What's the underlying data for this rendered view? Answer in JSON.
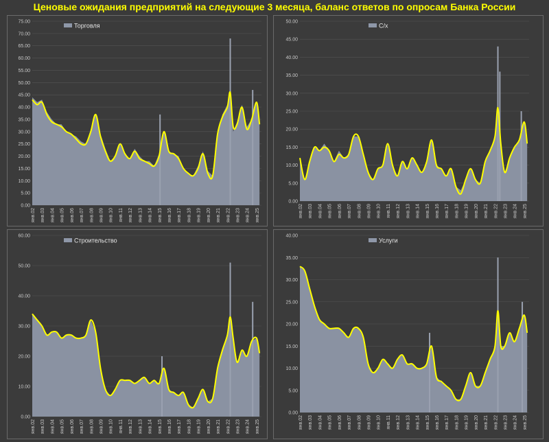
{
  "title": "Ценовые ожидания предприятий на следующие 3 месяца, баланс ответов по опросам Банка России",
  "colors": {
    "area": "#8e97a8",
    "spike": "#9aa1b0",
    "line": "#ffff00",
    "grid": "#555555",
    "panel": "#3b3b3b"
  },
  "chart_data": [
    {
      "type": "area",
      "name": "Торговля",
      "ylim": [
        0,
        75
      ],
      "ystep": 5,
      "yticks": [
        "0.00",
        "5.00",
        "10.00",
        "15.00",
        "20.00",
        "25.00",
        "30.00",
        "35.00",
        "40.00",
        "45.00",
        "50.00",
        "55.00",
        "60.00",
        "65.00",
        "70.00",
        "75.00"
      ],
      "xticks": [
        "янв.02",
        "янв.03",
        "янв.04",
        "янв.05",
        "янв.06",
        "янв.07",
        "янв.08",
        "янв.09",
        "янв.10",
        "янв.11",
        "янв.12",
        "янв.13",
        "янв.14",
        "янв.15",
        "янв.16",
        "янв.17",
        "янв.18",
        "янв.19",
        "янв.20",
        "янв.21",
        "янв.22",
        "янв.23",
        "янв.24",
        "янв.25"
      ],
      "x": [
        2002,
        2002.5,
        2003,
        2003.5,
        2004,
        2004.5,
        2005,
        2005.5,
        2006,
        2006.5,
        2007,
        2007.5,
        2008,
        2008.5,
        2009,
        2009.5,
        2010,
        2010.5,
        2011,
        2011.5,
        2012,
        2012.5,
        2013,
        2013.5,
        2014,
        2014.5,
        2015,
        2015.5,
        2016,
        2016.5,
        2017,
        2017.5,
        2018,
        2018.5,
        2019,
        2019.5,
        2020,
        2020.5,
        2021,
        2021.5,
        2022,
        2022.3,
        2022.6,
        2023,
        2023.5,
        2024,
        2024.5,
        2025,
        2025.3
      ],
      "values": [
        44,
        42,
        43,
        38,
        35,
        33,
        33,
        30,
        29,
        28,
        26,
        25,
        31,
        37,
        29,
        23,
        18,
        20,
        25,
        21,
        19,
        23,
        20,
        18,
        18,
        16,
        21,
        30,
        22,
        21,
        20,
        15,
        13,
        12,
        16,
        22,
        14,
        12,
        30,
        37,
        41,
        46,
        30,
        34,
        41,
        32,
        35,
        42,
        33
      ],
      "trend": [
        43,
        41,
        42,
        37,
        34,
        33,
        32,
        30,
        29,
        27,
        25,
        25,
        30,
        37,
        28,
        22,
        18,
        20,
        25,
        21,
        19,
        22,
        19,
        18,
        17,
        16,
        20,
        30,
        22,
        21,
        19,
        15,
        13,
        12,
        15,
        21,
        13,
        12,
        29,
        36,
        40,
        46,
        32,
        33,
        40,
        31,
        35,
        42,
        33
      ],
      "spikes": [
        {
          "x": 2022.3,
          "value": 68
        },
        {
          "x": 2024.6,
          "value": 47
        },
        {
          "x": 2015.1,
          "value": 37
        }
      ]
    },
    {
      "type": "area",
      "name": "С/х",
      "ylim": [
        0,
        50
      ],
      "ystep": 5,
      "yticks": [
        "0.00",
        "5.00",
        "10.00",
        "15.00",
        "20.00",
        "25.00",
        "30.00",
        "35.00",
        "40.00",
        "45.00",
        "50.00"
      ],
      "xticks": [
        "янв.02",
        "янв.03",
        "янв.04",
        "янв.05",
        "янв.06",
        "янв.07",
        "янв.08",
        "янв.09",
        "янв.10",
        "янв.11",
        "янв.12",
        "янв.13",
        "янв.14",
        "янв.15",
        "янв.16",
        "янв.17",
        "янв.18",
        "янв.19",
        "янв.20",
        "янв.21",
        "янв.22",
        "янв.23",
        "янв.24",
        "янв.25"
      ],
      "x": [
        2002,
        2002.5,
        2003,
        2003.5,
        2004,
        2004.5,
        2005,
        2005.5,
        2006,
        2006.5,
        2007,
        2007.5,
        2008,
        2008.5,
        2009,
        2009.5,
        2010,
        2010.5,
        2011,
        2011.5,
        2012,
        2012.5,
        2013,
        2013.5,
        2014,
        2014.5,
        2015,
        2015.5,
        2016,
        2016.5,
        2017,
        2017.5,
        2018,
        2018.5,
        2019,
        2019.5,
        2020,
        2020.5,
        2021,
        2021.5,
        2022,
        2022.3,
        2022.6,
        2023,
        2023.5,
        2024,
        2024.5,
        2025,
        2025.3
      ],
      "values": [
        12,
        6,
        11,
        15,
        14,
        16,
        14,
        11,
        14,
        12,
        13,
        18,
        18,
        13,
        8,
        6,
        9,
        10,
        16,
        10,
        7,
        11,
        9,
        12,
        10,
        8,
        11,
        17,
        10,
        9,
        7,
        9,
        4,
        3,
        6,
        9,
        6,
        5,
        11,
        14,
        18,
        26,
        16,
        8,
        12,
        15,
        17,
        22,
        16
      ],
      "trend": [
        12,
        6,
        11,
        15,
        14,
        15,
        14,
        11,
        13,
        12,
        13,
        18,
        18,
        13,
        8,
        6,
        9,
        10,
        16,
        10,
        7,
        11,
        9,
        12,
        10,
        8,
        11,
        17,
        10,
        9,
        7,
        9,
        4,
        2,
        6,
        9,
        6,
        5,
        11,
        14,
        18,
        26,
        16,
        8,
        12,
        15,
        17,
        22,
        16
      ],
      "spikes": [
        {
          "x": 2022.3,
          "value": 43
        },
        {
          "x": 2022.5,
          "value": 36
        },
        {
          "x": 2024.7,
          "value": 25
        }
      ]
    },
    {
      "type": "area",
      "name": "Строительство",
      "ylim": [
        0,
        60
      ],
      "ystep": 10,
      "yticks": [
        "0.00",
        "10.00",
        "20.00",
        "30.00",
        "40.00",
        "50.00",
        "60.00"
      ],
      "xticks": [
        "янв.02",
        "янв.03",
        "янв.04",
        "янв.05",
        "янв.06",
        "янв.07",
        "янв.08",
        "янв.09",
        "янв.10",
        "янв.11",
        "янв.12",
        "янв.13",
        "янв.14",
        "янв.15",
        "янв.16",
        "янв.17",
        "янв.18",
        "янв.19",
        "янв.20",
        "янв.21",
        "янв.22",
        "янв.23",
        "янв.24",
        "янв.25"
      ],
      "x": [
        2002,
        2002.5,
        2003,
        2003.5,
        2004,
        2004.5,
        2005,
        2005.5,
        2006,
        2006.5,
        2007,
        2007.5,
        2008,
        2008.5,
        2009,
        2009.5,
        2010,
        2010.5,
        2011,
        2011.5,
        2012,
        2012.5,
        2013,
        2013.5,
        2014,
        2014.5,
        2015,
        2015.5,
        2016,
        2016.5,
        2017,
        2017.5,
        2018,
        2018.5,
        2019,
        2019.5,
        2020,
        2020.5,
        2021,
        2021.5,
        2022,
        2022.3,
        2022.6,
        2023,
        2023.5,
        2024,
        2024.5,
        2025,
        2025.3
      ],
      "values": [
        34,
        32,
        30,
        27,
        28,
        28,
        26,
        27,
        27,
        26,
        26,
        27,
        32,
        28,
        16,
        9,
        7,
        9,
        12,
        12,
        12,
        11,
        12,
        13,
        11,
        12,
        11,
        16,
        9,
        8,
        7,
        8,
        4,
        3,
        6,
        9,
        5,
        6,
        16,
        22,
        27,
        33,
        26,
        18,
        22,
        20,
        25,
        26,
        21
      ],
      "trend": [
        34,
        32,
        30,
        27,
        28,
        28,
        26,
        27,
        27,
        26,
        26,
        27,
        32,
        28,
        16,
        9,
        7,
        9,
        12,
        12,
        12,
        11,
        12,
        13,
        11,
        12,
        11,
        16,
        9,
        8,
        7,
        8,
        4,
        3,
        6,
        9,
        5,
        6,
        16,
        22,
        27,
        33,
        26,
        18,
        22,
        20,
        25,
        26,
        21
      ],
      "spikes": [
        {
          "x": 2022.3,
          "value": 51
        },
        {
          "x": 2024.6,
          "value": 38
        },
        {
          "x": 2015.3,
          "value": 20
        }
      ]
    },
    {
      "type": "area",
      "name": "Услуги",
      "ylim": [
        0,
        40
      ],
      "ystep": 5,
      "yticks": [
        "0.00",
        "5.00",
        "10.00",
        "15.00",
        "20.00",
        "25.00",
        "30.00",
        "35.00",
        "40.00"
      ],
      "xticks": [
        "янв.02",
        "янв.03",
        "янв.04",
        "янв.05",
        "янв.06",
        "янв.07",
        "янв.08",
        "янв.09",
        "янв.10",
        "янв.11",
        "янв.12",
        "янв.13",
        "янв.14",
        "янв.15",
        "янв.16",
        "янв.17",
        "янв.18",
        "янв.19",
        "янв.20",
        "янв.21",
        "янв.22",
        "янв.23",
        "янв.24",
        "янв.25"
      ],
      "x": [
        2002,
        2002.5,
        2003,
        2003.5,
        2004,
        2004.5,
        2005,
        2005.5,
        2006,
        2006.5,
        2007,
        2007.5,
        2008,
        2008.5,
        2009,
        2009.5,
        2010,
        2010.5,
        2011,
        2011.5,
        2012,
        2012.5,
        2013,
        2013.5,
        2014,
        2014.5,
        2015,
        2015.5,
        2016,
        2016.5,
        2017,
        2017.5,
        2018,
        2018.5,
        2019,
        2019.5,
        2020,
        2020.5,
        2021,
        2021.5,
        2022,
        2022.3,
        2022.6,
        2023,
        2023.5,
        2024,
        2024.5,
        2025,
        2025.3
      ],
      "values": [
        33,
        32,
        28,
        24,
        21,
        20,
        19,
        19,
        19,
        18,
        17,
        19,
        19,
        17,
        11,
        9,
        10,
        12,
        11,
        10,
        12,
        13,
        11,
        11,
        10,
        10,
        11,
        15,
        8,
        7,
        6,
        5,
        3,
        3,
        6,
        9,
        6,
        6,
        9,
        12,
        15,
        23,
        15,
        15,
        18,
        16,
        19,
        22,
        18
      ],
      "trend": [
        33,
        32,
        28,
        24,
        21,
        20,
        19,
        19,
        19,
        18,
        17,
        19,
        19,
        17,
        11,
        9,
        10,
        12,
        11,
        10,
        12,
        13,
        11,
        11,
        10,
        10,
        11,
        15,
        8,
        7,
        6,
        5,
        3,
        3,
        6,
        9,
        6,
        6,
        9,
        12,
        15,
        23,
        15,
        15,
        18,
        16,
        19,
        22,
        18
      ],
      "spikes": [
        {
          "x": 2022.3,
          "value": 35
        },
        {
          "x": 2024.8,
          "value": 25
        },
        {
          "x": 2015.3,
          "value": 18
        }
      ]
    }
  ]
}
